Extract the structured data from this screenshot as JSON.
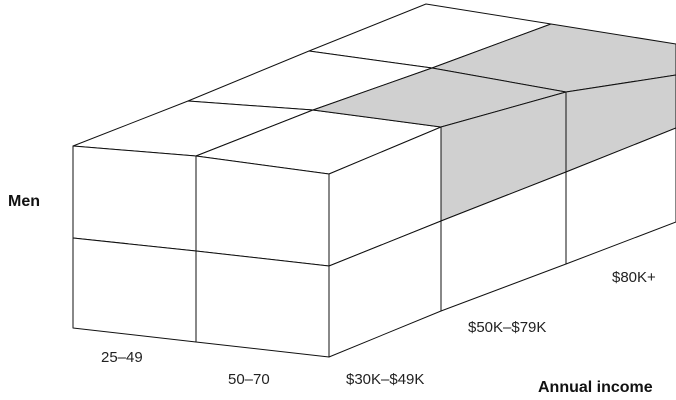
{
  "row_label": "Men",
  "axis_label": "Annual income",
  "age_labels": [
    "25–49",
    "50–70"
  ],
  "income_labels": [
    "$30K–$49K",
    "$50K–$79K",
    "$80K+"
  ],
  "colors": {
    "highlight": "#d0d0d0",
    "face": "#ffffff",
    "line": "#111111"
  }
}
